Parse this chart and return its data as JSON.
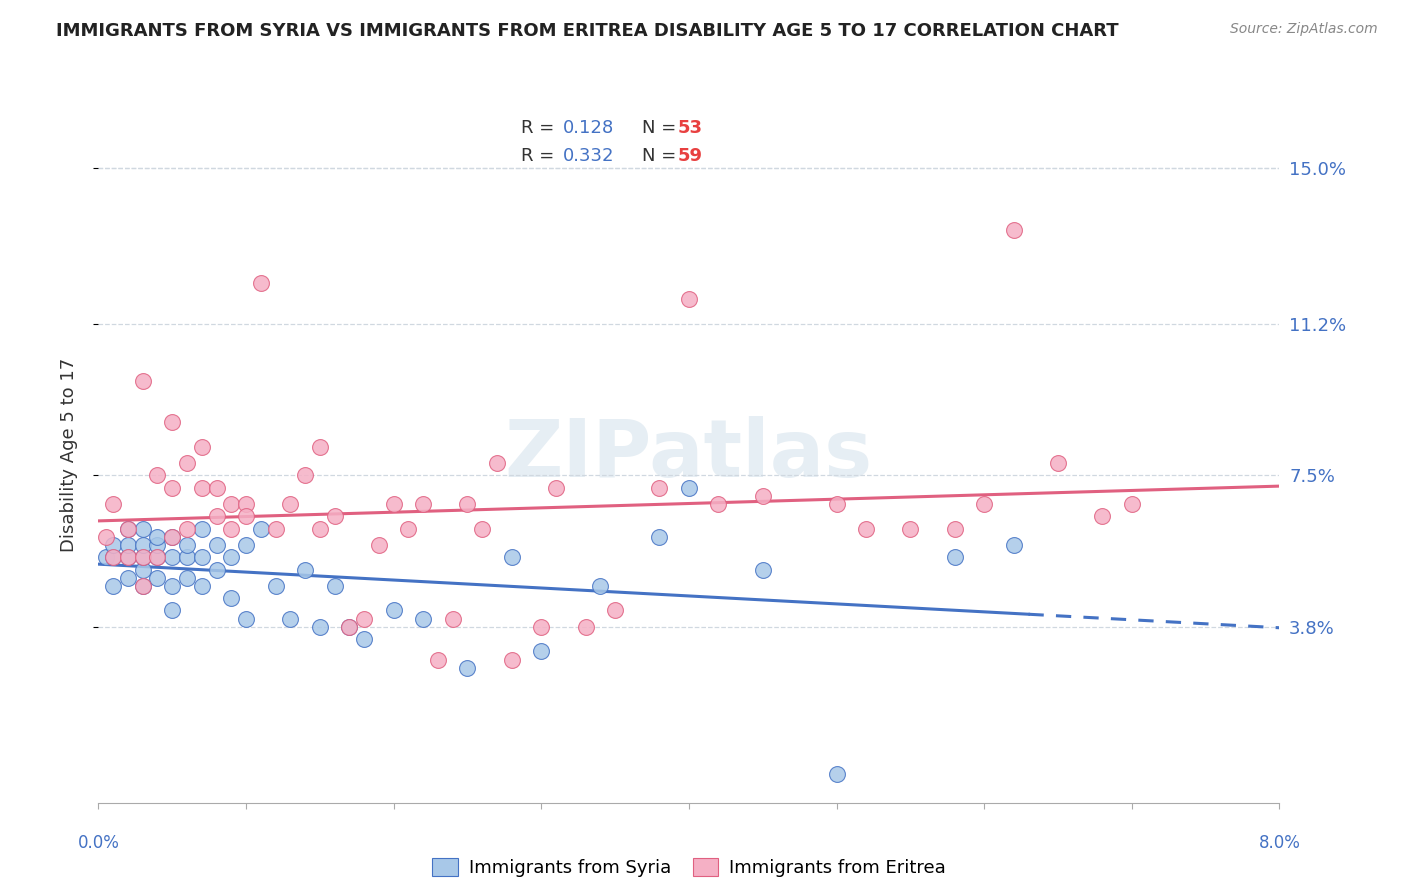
{
  "title": "IMMIGRANTS FROM SYRIA VS IMMIGRANTS FROM ERITREA DISABILITY AGE 5 TO 17 CORRELATION CHART",
  "source": "Source: ZipAtlas.com",
  "ylabel": "Disability Age 5 to 17",
  "ytick_labels": [
    "15.0%",
    "11.2%",
    "7.5%",
    "3.8%"
  ],
  "ytick_values": [
    0.15,
    0.112,
    0.075,
    0.038
  ],
  "xlim": [
    0.0,
    0.08
  ],
  "ylim": [
    -0.005,
    0.165
  ],
  "watermark": "ZIPatlas",
  "syria_color": "#a8c8e8",
  "eritrea_color": "#f5b0c5",
  "syria_R": 0.128,
  "syria_N": 53,
  "eritrea_R": 0.332,
  "eritrea_N": 59,
  "syria_line_color": "#4472c4",
  "eritrea_line_color": "#e06080",
  "syria_x": [
    0.0005,
    0.001,
    0.001,
    0.001,
    0.002,
    0.002,
    0.002,
    0.002,
    0.003,
    0.003,
    0.003,
    0.003,
    0.003,
    0.004,
    0.004,
    0.004,
    0.004,
    0.005,
    0.005,
    0.005,
    0.005,
    0.006,
    0.006,
    0.006,
    0.007,
    0.007,
    0.007,
    0.008,
    0.008,
    0.009,
    0.009,
    0.01,
    0.01,
    0.011,
    0.012,
    0.013,
    0.014,
    0.015,
    0.016,
    0.017,
    0.018,
    0.02,
    0.022,
    0.025,
    0.028,
    0.03,
    0.034,
    0.038,
    0.04,
    0.045,
    0.05,
    0.058,
    0.062
  ],
  "syria_y": [
    0.055,
    0.048,
    0.055,
    0.058,
    0.05,
    0.055,
    0.058,
    0.062,
    0.048,
    0.052,
    0.055,
    0.058,
    0.062,
    0.05,
    0.055,
    0.058,
    0.06,
    0.042,
    0.048,
    0.055,
    0.06,
    0.05,
    0.055,
    0.058,
    0.048,
    0.055,
    0.062,
    0.052,
    0.058,
    0.045,
    0.055,
    0.04,
    0.058,
    0.062,
    0.048,
    0.04,
    0.052,
    0.038,
    0.048,
    0.038,
    0.035,
    0.042,
    0.04,
    0.028,
    0.055,
    0.032,
    0.048,
    0.06,
    0.072,
    0.052,
    0.002,
    0.055,
    0.058
  ],
  "eritrea_x": [
    0.0005,
    0.001,
    0.001,
    0.002,
    0.002,
    0.003,
    0.003,
    0.003,
    0.004,
    0.004,
    0.005,
    0.005,
    0.005,
    0.006,
    0.006,
    0.007,
    0.007,
    0.008,
    0.008,
    0.009,
    0.009,
    0.01,
    0.01,
    0.011,
    0.012,
    0.013,
    0.014,
    0.015,
    0.015,
    0.016,
    0.017,
    0.018,
    0.019,
    0.02,
    0.021,
    0.022,
    0.023,
    0.024,
    0.025,
    0.026,
    0.027,
    0.028,
    0.03,
    0.031,
    0.033,
    0.035,
    0.038,
    0.04,
    0.042,
    0.045,
    0.05,
    0.052,
    0.055,
    0.058,
    0.06,
    0.062,
    0.065,
    0.068,
    0.07
  ],
  "eritrea_y": [
    0.06,
    0.055,
    0.068,
    0.055,
    0.062,
    0.048,
    0.055,
    0.098,
    0.055,
    0.075,
    0.06,
    0.072,
    0.088,
    0.062,
    0.078,
    0.072,
    0.082,
    0.065,
    0.072,
    0.062,
    0.068,
    0.068,
    0.065,
    0.122,
    0.062,
    0.068,
    0.075,
    0.062,
    0.082,
    0.065,
    0.038,
    0.04,
    0.058,
    0.068,
    0.062,
    0.068,
    0.03,
    0.04,
    0.068,
    0.062,
    0.078,
    0.03,
    0.038,
    0.072,
    0.038,
    0.042,
    0.072,
    0.118,
    0.068,
    0.07,
    0.068,
    0.062,
    0.062,
    0.062,
    0.068,
    0.135,
    0.078,
    0.065,
    0.068
  ],
  "background_color": "#ffffff",
  "grid_color": "#d0d8e0",
  "title_fontsize": 13,
  "axis_label_color": "#4472c4",
  "legend_R_color": "#4472c4",
  "legend_N_color": "#e84040"
}
